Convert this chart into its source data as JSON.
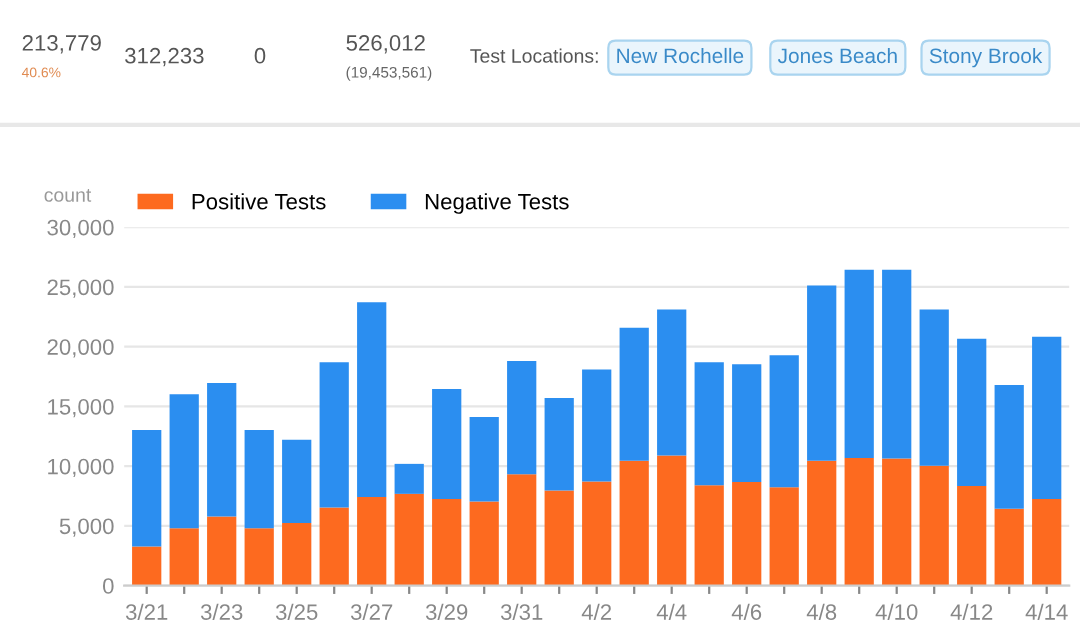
{
  "chart_data": {
    "type": "bar",
    "stacked": true,
    "ylabel": "count",
    "categories": [
      "3/21",
      null,
      "3/23",
      null,
      "3/25",
      null,
      "3/27",
      null,
      "3/29",
      null,
      "3/31",
      null,
      "4/2",
      null,
      "4/4",
      null,
      "4/6",
      null,
      "4/8",
      null,
      "4/10",
      null,
      "4/12",
      null,
      "4/14"
    ],
    "series": [
      {
        "name": "Positive Tests",
        "color": "#fd6a1f",
        "values": [
          3270,
          4800,
          5780,
          4800,
          5230,
          6540,
          7410,
          7680,
          7250,
          7030,
          9320,
          7960,
          8720,
          10460,
          10900,
          8390,
          8670,
          8230,
          10460,
          10680,
          10630,
          10030,
          8340,
          6430,
          7250
        ]
      },
      {
        "name": "Negative Tests",
        "color": "#2b8ef0",
        "values": [
          9760,
          11220,
          11170,
          8230,
          6980,
          12150,
          16300,
          2510,
          9210,
          7090,
          9480,
          7740,
          9370,
          11120,
          12210,
          10300,
          9860,
          11060,
          14660,
          15750,
          15800,
          13080,
          12320,
          10360,
          13570
        ]
      }
    ],
    "ylim": [
      0,
      30000
    ],
    "yticks": [
      {
        "value": 0,
        "label": "0"
      },
      {
        "value": 5000,
        "label": "5,000"
      },
      {
        "value": 10000,
        "label": "10,000"
      },
      {
        "value": 15000,
        "label": "15,000"
      },
      {
        "value": 20000,
        "label": "20,000"
      },
      {
        "value": 25000,
        "label": "25,000"
      },
      {
        "value": 30000,
        "label": "30,000"
      }
    ],
    "grid": "y",
    "legend": "top left",
    "annotations": [
      "213,779",
      "40.6%",
      "312,233",
      "0",
      "526,012",
      "(19,453,561)",
      "Test Locations:",
      "New Rochelle",
      "Jones Beach",
      "Stony Brook"
    ]
  }
}
